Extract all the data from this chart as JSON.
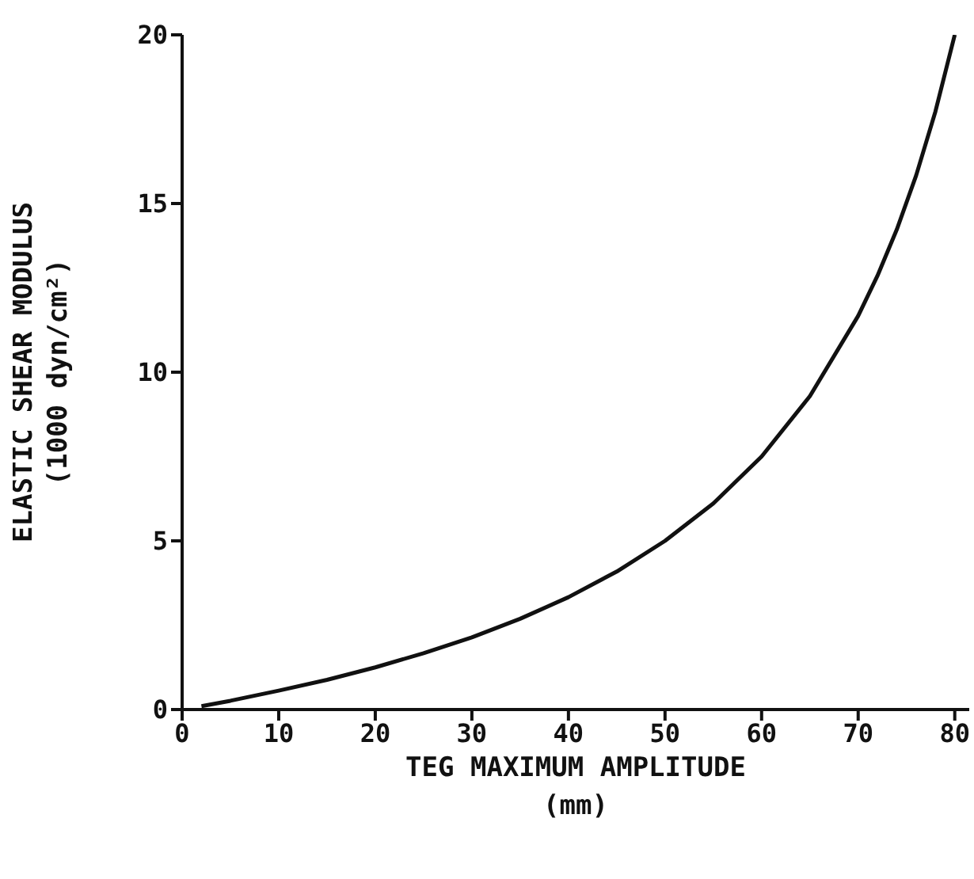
{
  "chart_data": {
    "type": "line",
    "xlabel": "TEG MAXIMUM AMPLITUDE\n(mm)",
    "ylabel": "ELASTIC SHEAR MODULUS\n(1000 dyn/cm²)",
    "series": [
      {
        "color": "#111111",
        "x": [
          2,
          5,
          10,
          15,
          20,
          25,
          30,
          35,
          40,
          45,
          50,
          55,
          60,
          65,
          70,
          72,
          74,
          76,
          78,
          80
        ],
        "values": [
          0.1,
          0.26,
          0.56,
          0.88,
          1.25,
          1.67,
          2.14,
          2.69,
          3.33,
          4.09,
          5,
          6.11,
          7.5,
          9.29,
          11.67,
          12.86,
          14.23,
          15.83,
          17.73,
          20
        ]
      }
    ],
    "xlim": [
      0,
      81.5
    ],
    "xticks": [
      0,
      10,
      20,
      30,
      40,
      50,
      60,
      70,
      80
    ],
    "ylim": [
      0,
      20
    ],
    "yticks": [
      0,
      5,
      10,
      15,
      20
    ],
    "marker": "none",
    "line_style": "solid"
  }
}
